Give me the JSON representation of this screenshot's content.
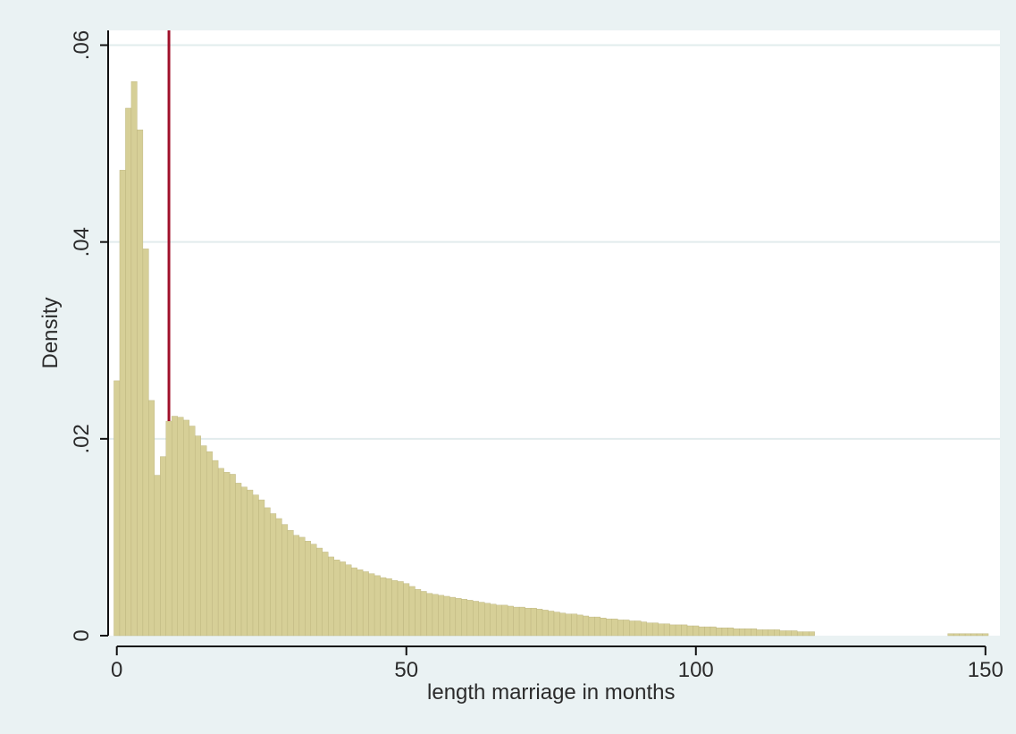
{
  "colors": {
    "background": "#eaf2f3",
    "plot_area": "#ffffff",
    "bar_fill": "#d6cf97",
    "bar_edge": "#b9b17a",
    "reference_line": "#a0102a",
    "gridline": "#e2eced",
    "axis": "#111111"
  },
  "chart_data": {
    "type": "bar",
    "title": "",
    "xlabel": "length marriage in months",
    "ylabel": "Density",
    "xlim": [
      -1.5,
      152.5
    ],
    "ylim": [
      0,
      0.0615
    ],
    "x_ticks": [
      0,
      50,
      100,
      150
    ],
    "x_tick_labels": [
      "0",
      "50",
      "100",
      "150"
    ],
    "y_ticks": [
      0,
      0.02,
      0.04,
      0.06
    ],
    "y_tick_labels": [
      "0",
      ".02",
      ".04",
      ".06"
    ],
    "grid": "horizontal",
    "legend": "none",
    "bin_width": 1,
    "bin_starts": [
      0,
      1,
      2,
      3,
      4,
      5,
      6,
      7,
      8,
      9,
      10,
      11,
      12,
      13,
      14,
      15,
      16,
      17,
      18,
      19,
      20,
      21,
      22,
      23,
      24,
      25,
      26,
      27,
      28,
      29,
      30,
      31,
      32,
      33,
      34,
      35,
      36,
      37,
      38,
      39,
      40,
      41,
      42,
      43,
      44,
      45,
      46,
      47,
      48,
      49,
      50,
      51,
      52,
      53,
      54,
      55,
      56,
      57,
      58,
      59,
      60,
      61,
      62,
      63,
      64,
      65,
      66,
      67,
      68,
      69,
      70,
      71,
      72,
      73,
      74,
      75,
      76,
      77,
      78,
      79,
      80,
      81,
      82,
      83,
      84,
      85,
      86,
      87,
      88,
      89,
      90,
      91,
      92,
      93,
      94,
      95,
      96,
      97,
      98,
      99,
      100,
      101,
      102,
      103,
      104,
      105,
      106,
      107,
      108,
      109,
      110,
      111,
      112,
      113,
      114,
      115,
      116,
      117,
      118,
      119,
      120,
      144,
      145,
      146,
      147,
      148,
      149,
      150
    ],
    "values": [
      0.0259,
      0.0473,
      0.0536,
      0.0563,
      0.0514,
      0.0393,
      0.0239,
      0.0163,
      0.0182,
      0.0218,
      0.0223,
      0.0222,
      0.0219,
      0.0213,
      0.0203,
      0.0193,
      0.0187,
      0.0178,
      0.017,
      0.0166,
      0.0164,
      0.0155,
      0.0151,
      0.0148,
      0.0143,
      0.0138,
      0.013,
      0.0124,
      0.0119,
      0.0113,
      0.0107,
      0.0102,
      0.01,
      0.0096,
      0.0093,
      0.0089,
      0.0085,
      0.008,
      0.0077,
      0.0075,
      0.0072,
      0.0069,
      0.0067,
      0.0065,
      0.0063,
      0.0061,
      0.0059,
      0.0058,
      0.0056,
      0.0055,
      0.0053,
      0.005,
      0.0047,
      0.0045,
      0.0043,
      0.0042,
      0.0041,
      0.004,
      0.0039,
      0.0038,
      0.0037,
      0.0036,
      0.0035,
      0.0034,
      0.0033,
      0.0032,
      0.0031,
      0.0031,
      0.003,
      0.0029,
      0.0029,
      0.0028,
      0.0028,
      0.0027,
      0.0026,
      0.0025,
      0.0024,
      0.0023,
      0.0022,
      0.0022,
      0.0021,
      0.002,
      0.0019,
      0.0019,
      0.0018,
      0.0017,
      0.0017,
      0.0016,
      0.0016,
      0.0015,
      0.0015,
      0.0014,
      0.0013,
      0.0013,
      0.0012,
      0.0012,
      0.0011,
      0.0011,
      0.0011,
      0.001,
      0.001,
      0.0009,
      0.0009,
      0.0009,
      0.0008,
      0.0008,
      0.0008,
      0.0007,
      0.0007,
      0.0007,
      0.0007,
      0.0006,
      0.0006,
      0.0006,
      0.0006,
      0.0005,
      0.0005,
      0.0005,
      0.0004,
      0.0004,
      0.0004,
      0.0002,
      0.0002,
      0.0002,
      0.0002,
      0.0002,
      0.0002,
      0.0002
    ],
    "reference_line_x": 9
  }
}
